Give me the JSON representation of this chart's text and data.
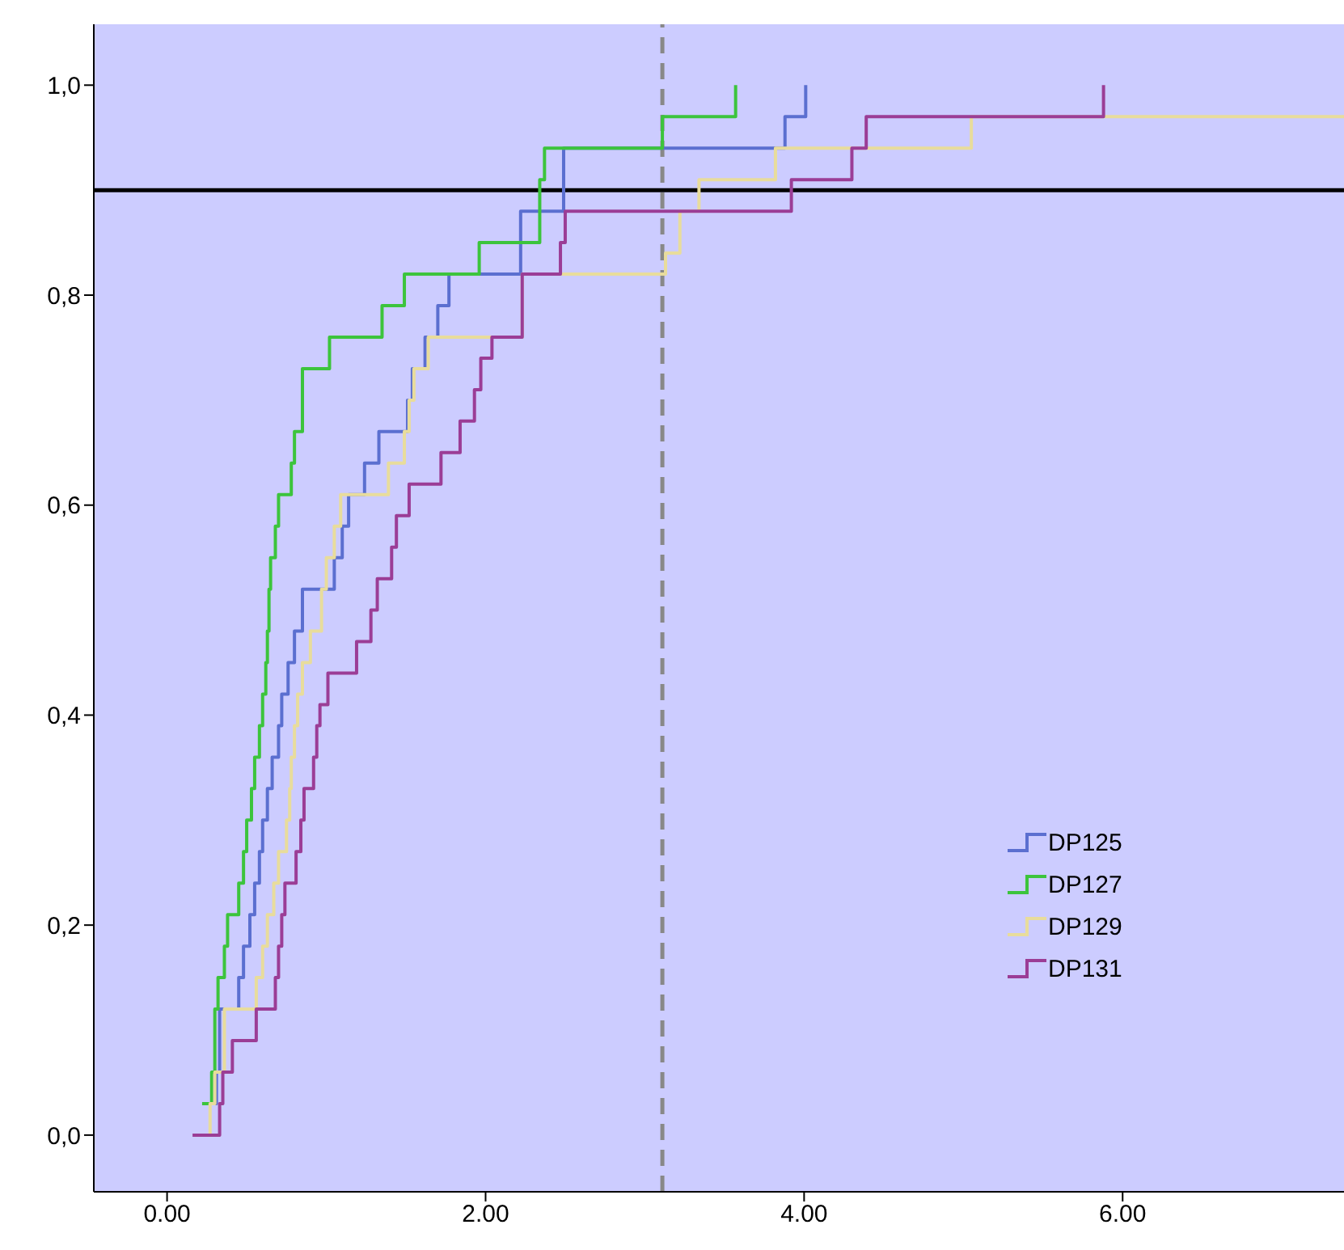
{
  "chart_data": {
    "type": "step",
    "xlim": [
      -0.46,
      7.39
    ],
    "ylim": [
      -0.054,
      1.058
    ],
    "xticks": [
      {
        "value": 0,
        "label": "0.00"
      },
      {
        "value": 2,
        "label": "2.00"
      },
      {
        "value": 4,
        "label": "4.00"
      },
      {
        "value": 6,
        "label": "6.00"
      }
    ],
    "yticks": [
      {
        "value": 0,
        "label": "0,0"
      },
      {
        "value": 0.2,
        "label": "0,2"
      },
      {
        "value": 0.4,
        "label": "0,4"
      },
      {
        "value": 0.6,
        "label": "0,6"
      },
      {
        "value": 0.8,
        "label": "0,8"
      },
      {
        "value": 1,
        "label": "1,0"
      }
    ],
    "grid": false,
    "legend": "bottom right",
    "marker": "none",
    "series": [
      {
        "name": "DP125",
        "color": "#5b6fd0",
        "x": [
          0.27,
          0.31,
          0.33,
          0.33,
          0.36,
          0.45,
          0.48,
          0.52,
          0.55,
          0.58,
          0.6,
          0.63,
          0.66,
          0.7,
          0.72,
          0.76,
          0.8,
          0.85,
          1.05,
          1.1,
          1.14,
          1.24,
          1.33,
          1.51,
          1.54,
          1.62,
          1.7,
          1.77,
          2.22,
          2.49,
          3.88,
          4.01
        ],
        "values": [
          0.03,
          0.06,
          0.09,
          0.12,
          0.12,
          0.15,
          0.18,
          0.21,
          0.24,
          0.27,
          0.3,
          0.33,
          0.36,
          0.39,
          0.42,
          0.45,
          0.48,
          0.52,
          0.55,
          0.58,
          0.61,
          0.64,
          0.67,
          0.7,
          0.73,
          0.76,
          0.79,
          0.82,
          0.88,
          0.94,
          0.97,
          1.0
        ]
      },
      {
        "name": "DP127",
        "color": "#3cc43c",
        "x": [
          0.22,
          0.28,
          0.3,
          0.32,
          0.36,
          0.38,
          0.45,
          0.48,
          0.5,
          0.53,
          0.55,
          0.58,
          0.6,
          0.62,
          0.63,
          0.64,
          0.65,
          0.68,
          0.7,
          0.78,
          0.8,
          0.85,
          1.02,
          1.35,
          1.49,
          1.96,
          2.34,
          2.37,
          3.11,
          3.57
        ],
        "values": [
          0.03,
          0.06,
          0.12,
          0.15,
          0.18,
          0.21,
          0.24,
          0.27,
          0.3,
          0.33,
          0.36,
          0.39,
          0.42,
          0.45,
          0.48,
          0.52,
          0.55,
          0.58,
          0.61,
          0.64,
          0.67,
          0.73,
          0.76,
          0.79,
          0.82,
          0.85,
          0.91,
          0.94,
          0.97,
          1.0
        ]
      },
      {
        "name": "DP129",
        "color": "#e8dc9c",
        "x": [
          0.23,
          0.27,
          0.3,
          0.36,
          0.56,
          0.6,
          0.63,
          0.67,
          0.7,
          0.75,
          0.77,
          0.78,
          0.8,
          0.82,
          0.85,
          0.9,
          0.95,
          0.97,
          1.0,
          1.05,
          1.09,
          1.39,
          1.49,
          1.52,
          1.55,
          1.64,
          2.23,
          3.13,
          3.22,
          3.34,
          3.82,
          5.05,
          7.39
        ],
        "values": [
          0.0,
          0.03,
          0.06,
          0.12,
          0.15,
          0.18,
          0.21,
          0.24,
          0.27,
          0.3,
          0.33,
          0.36,
          0.39,
          0.42,
          0.45,
          0.48,
          0.48,
          0.52,
          0.55,
          0.58,
          0.61,
          0.64,
          0.67,
          0.7,
          0.73,
          0.76,
          0.82,
          0.84,
          0.88,
          0.91,
          0.94,
          0.97,
          0.97
        ]
      },
      {
        "name": "DP131",
        "color": "#9b3d96",
        "x": [
          0.16,
          0.33,
          0.35,
          0.41,
          0.56,
          0.68,
          0.7,
          0.72,
          0.74,
          0.81,
          0.84,
          0.86,
          0.92,
          0.94,
          0.96,
          1.01,
          1.19,
          1.28,
          1.32,
          1.41,
          1.44,
          1.52,
          1.72,
          1.84,
          1.93,
          1.97,
          2.04,
          2.23,
          2.47,
          2.5,
          3.92,
          4.3,
          4.39,
          5.88
        ],
        "values": [
          0.0,
          0.03,
          0.06,
          0.09,
          0.12,
          0.15,
          0.18,
          0.21,
          0.24,
          0.27,
          0.3,
          0.33,
          0.36,
          0.39,
          0.41,
          0.44,
          0.47,
          0.5,
          0.53,
          0.56,
          0.59,
          0.62,
          0.65,
          0.68,
          0.71,
          0.74,
          0.76,
          0.82,
          0.85,
          0.88,
          0.91,
          0.94,
          0.97,
          1.0
        ]
      }
    ],
    "ref_lines": [
      {
        "axis": "y",
        "value": 0.9,
        "color": "#000000",
        "line_style": "solid"
      },
      {
        "axis": "x",
        "value": 3.11,
        "color": "#888888",
        "line_style": "dashed"
      }
    ]
  }
}
